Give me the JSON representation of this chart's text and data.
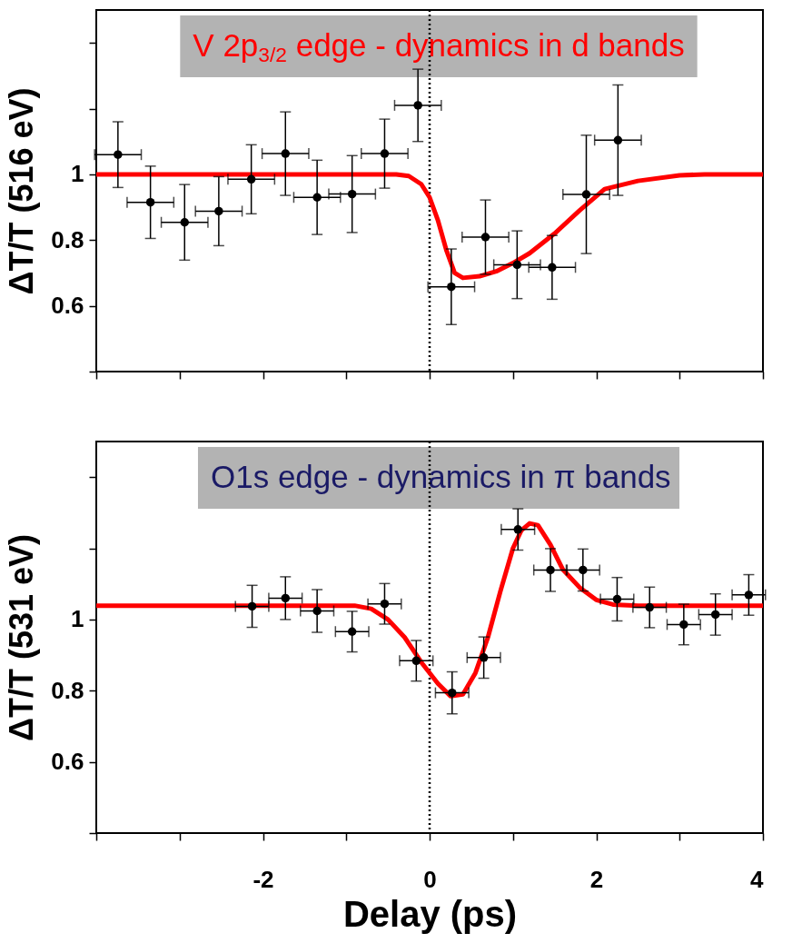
{
  "chart_data": [
    {
      "type": "scatter",
      "ylabel": "ΔT/T (516 eV)",
      "annotations": [
        "V 2p$_{3/2}$ edge - dynamics in d bands"
      ],
      "xlim": [
        -4,
        4
      ],
      "ylim": [
        0.4,
        1.5
      ],
      "xticks": [
        {
          "value": -4,
          "label": null
        },
        {
          "value": -3,
          "label": null
        },
        {
          "value": -2,
          "label": null
        },
        {
          "value": -1,
          "label": null
        },
        {
          "value": 0,
          "label": null
        },
        {
          "value": 1,
          "label": null
        },
        {
          "value": 2,
          "label": null
        },
        {
          "value": 3,
          "label": null
        },
        {
          "value": 4,
          "label": null
        }
      ],
      "yticks": [
        {
          "value": 0.4,
          "label": null
        },
        0.6,
        0.8,
        1,
        {
          "value": 1.2,
          "label": null
        },
        {
          "value": 1.4,
          "label": null
        }
      ],
      "tick_labels": "y",
      "grid": false,
      "ref_lines": [
        {
          "axis": "x",
          "value": 0,
          "color": "#000000",
          "line_style": "dotted"
        }
      ],
      "series": [
        {
          "type": "scatter",
          "marker": "circle",
          "color": "#000000",
          "x": [
            -3.74,
            -3.35,
            -2.94,
            -2.53,
            -2.14,
            -1.73,
            -1.35,
            -0.93,
            -0.54,
            -0.14,
            0.26,
            0.67,
            1.05,
            1.47,
            1.88,
            2.26
          ],
          "values": [
            1.06,
            0.915,
            0.854,
            0.888,
            0.985,
            1.063,
            0.93,
            0.94,
            1.063,
            1.21,
            0.658,
            0.809,
            0.725,
            0.717,
            0.939,
            1.104
          ],
          "errors": [
            0.1,
            0.11,
            0.115,
            0.105,
            0.105,
            0.127,
            0.113,
            0.117,
            0.105,
            0.11,
            0.115,
            0.113,
            0.103,
            0.097,
            0.18,
            0.168
          ],
          "xerrors": [
            0.28,
            0.28,
            0.28,
            0.28,
            0.28,
            0.28,
            0.28,
            0.28,
            0.28,
            0.28,
            0.28,
            0.28,
            0.28,
            0.28,
            0.28,
            0.28
          ]
        },
        {
          "type": "line",
          "marker": "none",
          "line_style": "solid",
          "color": "#ff0000",
          "x": [
            -4,
            -0.4,
            -0.25,
            -0.1,
            0,
            0.1,
            0.2,
            0.3,
            0.4,
            0.6,
            0.8,
            1.0,
            1.2,
            1.5,
            1.8,
            2.1,
            2.5,
            3.0,
            3.3,
            4
          ],
          "values": [
            1,
            1,
            0.995,
            0.97,
            0.93,
            0.86,
            0.77,
            0.7,
            0.685,
            0.69,
            0.705,
            0.73,
            0.76,
            0.82,
            0.89,
            0.955,
            0.98,
            0.997,
            1,
            1
          ]
        }
      ]
    },
    {
      "type": "scatter",
      "xlabel": "Delay (ps)",
      "ylabel": "ΔT/T (531 eV)",
      "annotations": [
        "O1s edge - dynamics in π bands"
      ],
      "xlim": [
        -4,
        4
      ],
      "ylim": [
        0.4,
        1.5
      ],
      "xticks": [
        {
          "value": -4,
          "label": null
        },
        {
          "value": -3,
          "label": null
        },
        -2,
        {
          "value": -1,
          "label": null
        },
        0,
        {
          "value": 1,
          "label": null
        },
        2,
        {
          "value": 3,
          "label": null
        },
        4
      ],
      "yticks": [
        {
          "value": 0.4,
          "label": null
        },
        0.6,
        0.8,
        1,
        {
          "value": 1.2,
          "label": null
        },
        {
          "value": 1.4,
          "label": null
        }
      ],
      "grid": false,
      "ref_lines": [
        {
          "axis": "x",
          "value": 0,
          "color": "#000000",
          "line_style": "dotted"
        }
      ],
      "series": [
        {
          "type": "scatter",
          "marker": "circle",
          "color": "#000000",
          "x": [
            -2.13,
            -1.73,
            -1.35,
            -0.93,
            -0.54,
            -0.16,
            0.27,
            0.65,
            1.06,
            1.45,
            1.84,
            2.25,
            2.64,
            3.05,
            3.43,
            3.83
          ],
          "values": [
            1.037,
            1.06,
            1.024,
            0.966,
            1.044,
            0.884,
            0.794,
            0.893,
            1.253,
            1.139,
            1.139,
            1.057,
            1.034,
            0.986,
            1.014,
            1.069
          ],
          "errors": [
            0.059,
            0.06,
            0.06,
            0.057,
            0.057,
            0.057,
            0.059,
            0.058,
            0.058,
            0.06,
            0.059,
            0.061,
            0.057,
            0.057,
            0.058,
            0.057
          ],
          "xerrors": [
            0.2,
            0.2,
            0.2,
            0.2,
            0.2,
            0.2,
            0.2,
            0.2,
            0.2,
            0.2,
            0.2,
            0.2,
            0.2,
            0.2,
            0.2,
            0.2
          ]
        },
        {
          "type": "line",
          "marker": "none",
          "line_style": "solid",
          "color": "#ff0000",
          "x": [
            -4,
            -0.9,
            -0.7,
            -0.5,
            -0.3,
            -0.1,
            0.1,
            0.25,
            0.4,
            0.55,
            0.7,
            0.85,
            1.0,
            1.1,
            1.2,
            1.3,
            1.45,
            1.6,
            1.8,
            2.0,
            2.2,
            2.5,
            4
          ],
          "values": [
            1.039,
            1.039,
            1.03,
            1.0,
            0.95,
            0.88,
            0.82,
            0.785,
            0.79,
            0.85,
            0.95,
            1.08,
            1.2,
            1.25,
            1.27,
            1.265,
            1.21,
            1.14,
            1.09,
            1.055,
            1.042,
            1.039,
            1.039
          ]
        }
      ]
    }
  ]
}
